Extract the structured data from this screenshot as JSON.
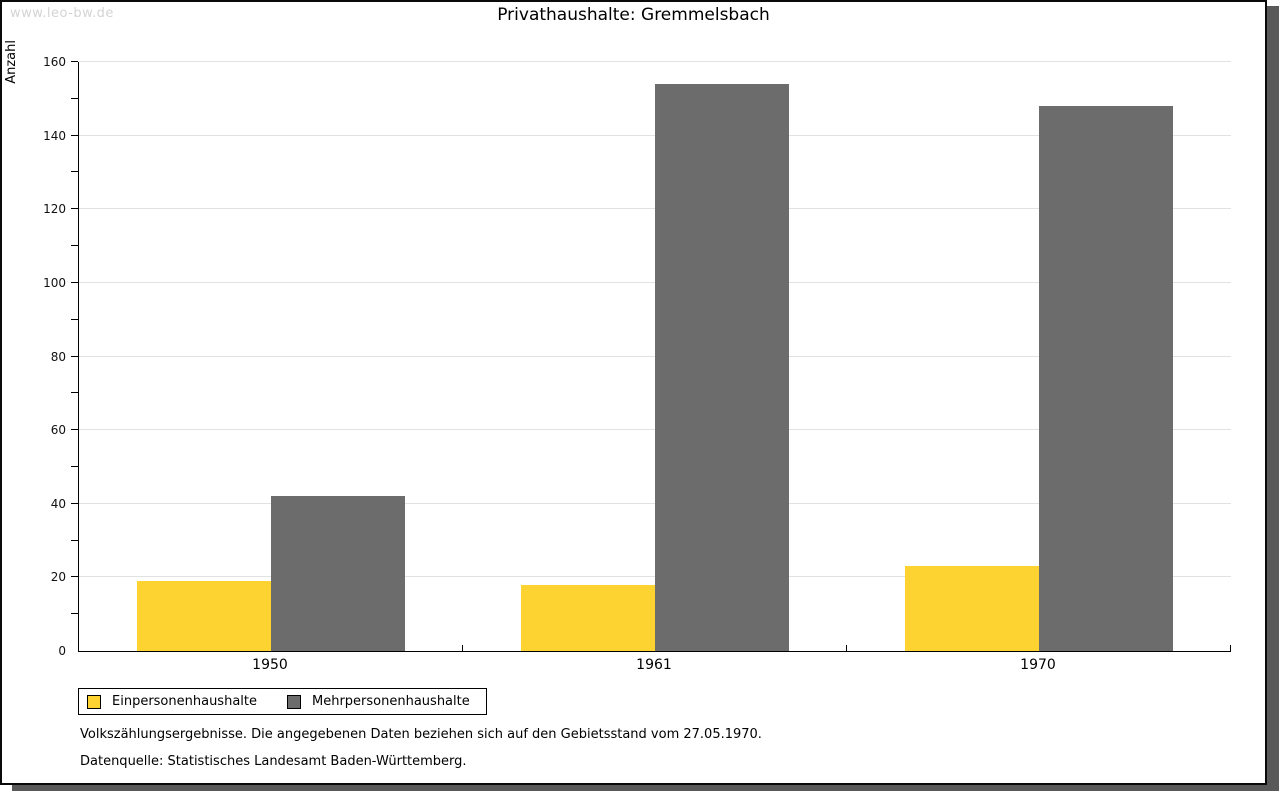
{
  "watermark": "www.leo-bw.de",
  "chart_data": {
    "type": "bar",
    "title": "Privathaushalte: Gremmelsbach",
    "ylabel": "Anzahl",
    "xlabel": "",
    "categories": [
      "1950",
      "1961",
      "1970"
    ],
    "series": [
      {
        "name": "Einpersonenhaushalte",
        "color": "#FCD330",
        "values": [
          19,
          18,
          23
        ]
      },
      {
        "name": "Mehrpersonenhaushalte",
        "color": "#6C6C6C",
        "values": [
          42,
          154,
          148
        ]
      }
    ],
    "ylim": [
      0,
      160
    ],
    "y_major_step": 20,
    "y_minor_step": 10,
    "grid": true,
    "legend_position": "bottom-left",
    "colors": {
      "axis": "#000000",
      "gridline": "#e2e2e2",
      "shadow": "#595959",
      "watermark": "#d4d4d4"
    }
  },
  "footnotes": [
    "Volkszählungsergebnisse. Die angegebenen Daten beziehen sich auf den Gebietsstand vom 27.05.1970.",
    "Datenquelle: Statistisches Landesamt Baden-Württemberg."
  ]
}
